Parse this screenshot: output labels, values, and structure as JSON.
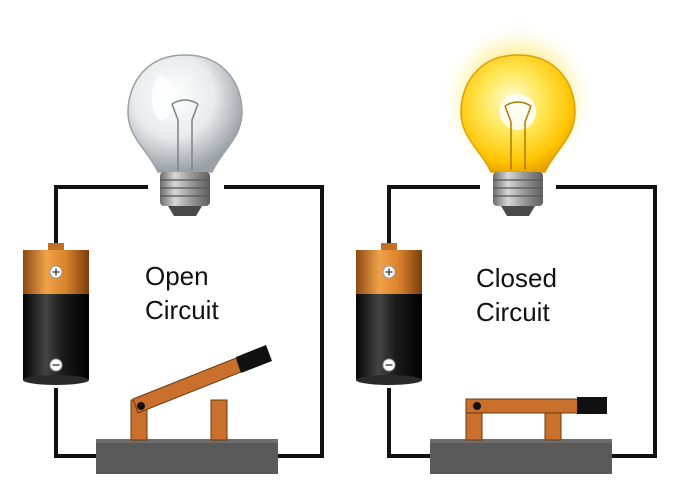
{
  "circuits": {
    "open": {
      "line1": "Open",
      "line2": "Circuit"
    },
    "closed": {
      "line1": "Closed",
      "line2": "Circuit"
    }
  },
  "colors": {
    "wire": "#111111",
    "battery_cap": "#d9822b",
    "battery_body": "#1a1a1a",
    "switch_lever": "#c8702c",
    "switch_base": "#5a5a5a",
    "bulb_glow": "#ffd21a"
  },
  "icons": [
    "light-bulb-off-icon",
    "light-bulb-on-icon",
    "battery-icon",
    "knife-switch-open-icon",
    "knife-switch-closed-icon"
  ]
}
